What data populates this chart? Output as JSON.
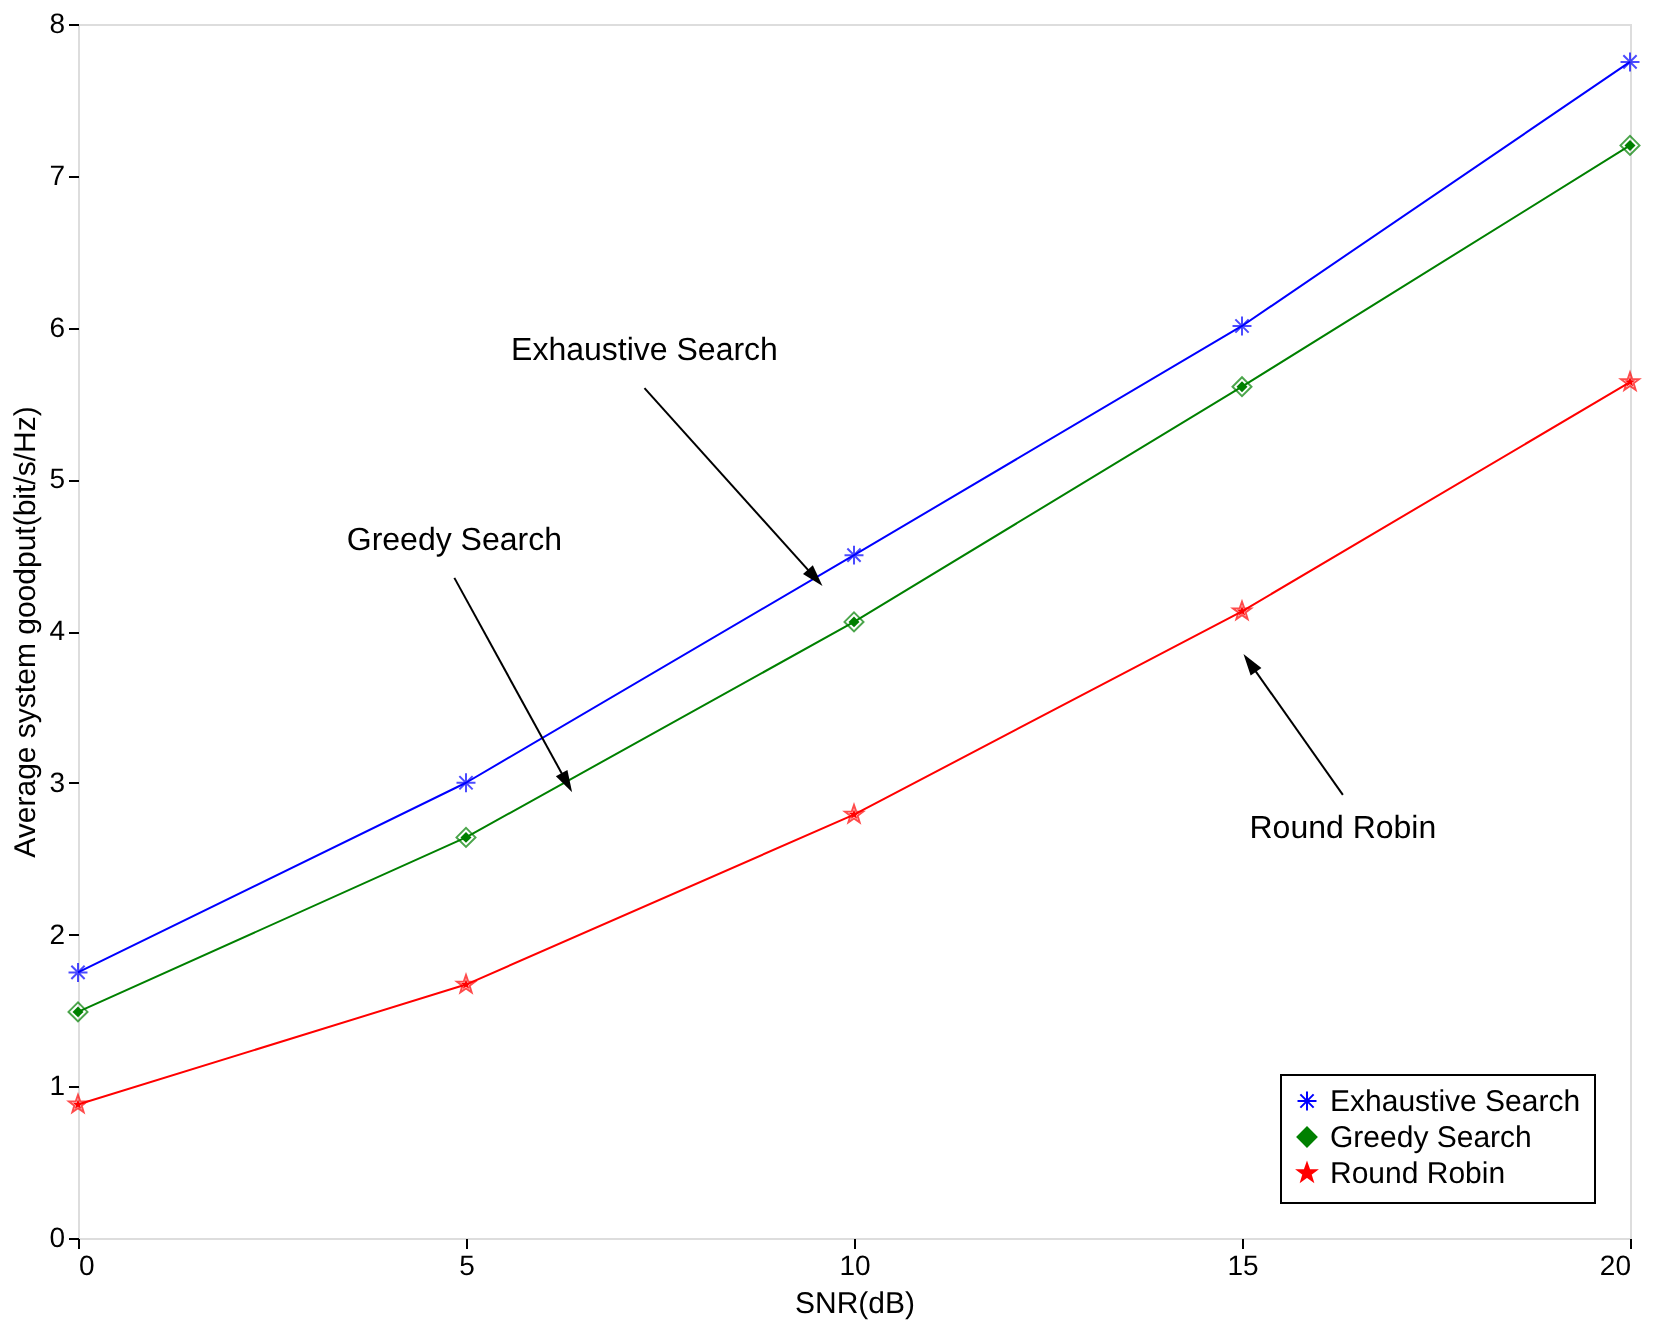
{
  "chart_data": {
    "type": "line",
    "xlabel": "SNR(dB)",
    "ylabel": "Average system goodput(bit/s/Hz)",
    "x": [
      0,
      5,
      10,
      15,
      20
    ],
    "series": [
      {
        "name": "Exhaustive Search",
        "color": "#0000ff",
        "marker": "cross",
        "values": [
          1.75,
          3.0,
          4.5,
          6.01,
          7.75
        ]
      },
      {
        "name": "Greedy Search",
        "color": "#008000",
        "marker": "diamond",
        "values": [
          1.49,
          2.64,
          4.06,
          5.61,
          7.2
        ]
      },
      {
        "name": "Round Robin",
        "color": "#ff0000",
        "marker": "star",
        "values": [
          0.88,
          1.67,
          2.79,
          4.13,
          5.64
        ]
      }
    ],
    "annotations": [
      {
        "text": "Exhaustive Search",
        "x": 9.5,
        "y": 4.35
      },
      {
        "text": "Greedy Search",
        "x": 6.3,
        "y": 3.0
      },
      {
        "text": "Round Robin",
        "x": 15.1,
        "y": 3.79
      }
    ],
    "xlim": [
      0,
      20
    ],
    "xticks": [
      0,
      5,
      10,
      15,
      20
    ],
    "ylim": [
      0,
      8
    ],
    "yticks": [
      0,
      1,
      2,
      3,
      4,
      5,
      6,
      7,
      8
    ],
    "grid": false,
    "legend": "bottom right",
    "line_style": "solid"
  }
}
